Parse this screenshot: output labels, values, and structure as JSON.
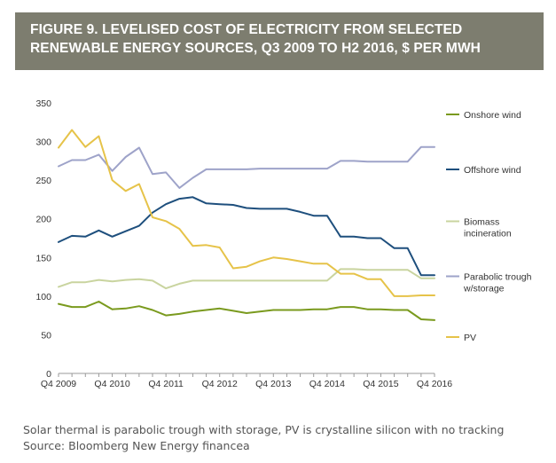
{
  "figure": {
    "title_line1": "FIGURE 9. LEVELISED COST OF ELECTRICITY FROM SELECTED",
    "title_line2": "RENEWABLE ENERGY SOURCES, Q3 2009 TO H2 2016, $ PER MWH",
    "note": "Solar thermal is parabolic trough with storage, PV is crystalline silicon with no tracking",
    "source": "Source: Bloomberg New Energy financea"
  },
  "chart_data": {
    "type": "line",
    "title": "",
    "xlabel": "",
    "ylabel": "",
    "ylim": [
      0,
      350
    ],
    "yticks": [
      0,
      50,
      100,
      150,
      200,
      250,
      300,
      350
    ],
    "xtick_labels": [
      "Q4 2009",
      "Q4 2010",
      "Q4 2011",
      "Q4 2012",
      "Q4 2013",
      "Q4 2014",
      "Q4 2015",
      "Q4 2016"
    ],
    "periods_between_ticks": 4,
    "grid": false,
    "legend_position": "right",
    "series": [
      {
        "name": "Onshore wind",
        "color": "#7a9a1e",
        "values": [
          90,
          86,
          86,
          93,
          83,
          84,
          87,
          82,
          75,
          77,
          80,
          82,
          84,
          81,
          78,
          80,
          82,
          82,
          82,
          83,
          83,
          86,
          86,
          83,
          83,
          82,
          82,
          70,
          69
        ]
      },
      {
        "name": "Offshore wind",
        "color": "#1e4f7d",
        "values": [
          170,
          178,
          177,
          185,
          177,
          184,
          191,
          208,
          219,
          226,
          228,
          220,
          219,
          218,
          214,
          213,
          213,
          213,
          209,
          204,
          204,
          177,
          177,
          175,
          175,
          162,
          162,
          127,
          127
        ]
      },
      {
        "name": "Biomass incineration",
        "color": "#c9d49f",
        "values": [
          112,
          118,
          118,
          121,
          119,
          121,
          122,
          120,
          110,
          116,
          120,
          120,
          120,
          120,
          120,
          120,
          120,
          120,
          120,
          120,
          120,
          135,
          135,
          134,
          134,
          134,
          134,
          123,
          123
        ]
      },
      {
        "name": "Parabolic trough w/storage",
        "color": "#9ea3c9",
        "values": [
          268,
          276,
          276,
          283,
          262,
          280,
          292,
          258,
          260,
          240,
          253,
          264,
          264,
          264,
          264,
          265,
          265,
          265,
          265,
          265,
          265,
          275,
          275,
          274,
          274,
          274,
          274,
          293,
          293
        ]
      },
      {
        "name": "PV",
        "color": "#e6c349",
        "values": [
          292,
          315,
          293,
          307,
          250,
          236,
          245,
          202,
          197,
          187,
          165,
          166,
          163,
          136,
          138,
          145,
          150,
          148,
          145,
          142,
          142,
          129,
          129,
          122,
          122,
          100,
          100,
          101,
          101
        ]
      }
    ],
    "legend": [
      {
        "label_lines": [
          "Onshore wind"
        ],
        "color": "#7a9a1e"
      },
      {
        "label_lines": [
          "Offshore wind"
        ],
        "color": "#1e4f7d"
      },
      {
        "label_lines": [
          "Biomass",
          "incineration"
        ],
        "color": "#c9d49f"
      },
      {
        "label_lines": [
          "Parabolic trough",
          "w/storage"
        ],
        "color": "#9ea3c9"
      },
      {
        "label_lines": [
          "PV"
        ],
        "color": "#e6c349"
      }
    ]
  }
}
